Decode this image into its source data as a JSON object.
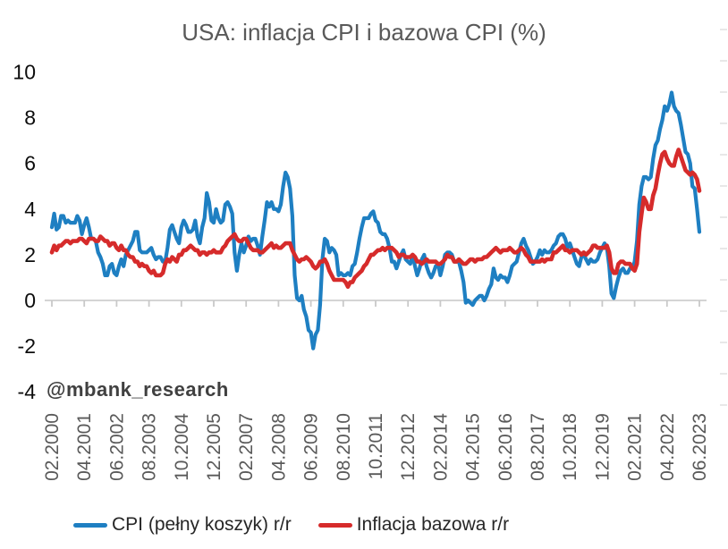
{
  "page": {
    "watermark": "@mbank_research"
  },
  "chart_data": {
    "type": "line",
    "title": "USA: inflacja CPI i bazowa CPI (%)",
    "xlabel": "",
    "ylabel": "",
    "ylim": [
      -4,
      10
    ],
    "y_ticks": [
      10,
      8,
      6,
      4,
      2,
      0,
      -2,
      -4
    ],
    "grid": false,
    "legend_position": "bottom",
    "x_unit": "month",
    "x_range": [
      "02.2000",
      "06.2023"
    ],
    "x_tick_labels": [
      "02.2000",
      "04.2001",
      "06.2002",
      "08.2003",
      "10.2004",
      "12.2005",
      "02.2007",
      "04.2008",
      "06.2009",
      "08.2010",
      "10.2011",
      "12.2012",
      "02.2014",
      "04.2015",
      "06.2016",
      "08.2017",
      "10.2018",
      "12.2019",
      "02.2021",
      "04.2022",
      "06.2023"
    ],
    "axis_color": "#d4d4d4",
    "tick_color": "#c9c9c9",
    "series": [
      {
        "name": "CPI (pełny koszyk) r/r",
        "color": "#1E7FC2",
        "values": [
          3.2,
          3.8,
          3.1,
          3.2,
          3.7,
          3.7,
          3.4,
          3.5,
          3.4,
          3.4,
          3.4,
          3.7,
          3.5,
          2.9,
          3.3,
          3.6,
          3.2,
          2.7,
          2.7,
          2.6,
          2.1,
          1.9,
          1.6,
          1.1,
          1.1,
          1.5,
          1.6,
          1.2,
          1.1,
          1.5,
          1.8,
          1.5,
          2.0,
          2.2,
          2.4,
          2.6,
          3.0,
          3.0,
          2.2,
          2.1,
          2.1,
          2.1,
          2.2,
          2.3,
          2.0,
          1.8,
          1.9,
          1.9,
          1.7,
          1.7,
          2.3,
          3.1,
          3.3,
          3.0,
          2.7,
          2.5,
          3.2,
          3.5,
          3.3,
          3.0,
          3.0,
          3.1,
          3.5,
          2.8,
          2.5,
          3.2,
          3.6,
          4.7,
          4.3,
          3.5,
          3.4,
          4.0,
          3.6,
          3.4,
          3.5,
          4.2,
          4.3,
          4.1,
          3.8,
          2.1,
          1.3,
          2.0,
          2.5,
          2.1,
          2.4,
          2.8,
          2.6,
          2.7,
          2.7,
          2.4,
          2.0,
          2.8,
          3.5,
          4.3,
          4.1,
          4.3,
          4.0,
          4.0,
          3.9,
          4.2,
          5.0,
          5.6,
          5.4,
          4.9,
          3.7,
          1.1,
          0.1,
          0.0,
          0.2,
          -0.4,
          -0.7,
          -1.3,
          -1.4,
          -2.1,
          -1.5,
          -1.3,
          -0.2,
          1.8,
          2.7,
          2.6,
          2.1,
          2.3,
          2.2,
          2.0,
          1.1,
          1.2,
          1.1,
          1.1,
          1.2,
          1.1,
          1.5,
          1.6,
          2.1,
          2.7,
          3.2,
          3.6,
          3.6,
          3.6,
          3.8,
          3.9,
          3.5,
          3.4,
          3.0,
          2.9,
          2.9,
          2.7,
          2.3,
          1.7,
          1.7,
          1.4,
          1.7,
          2.0,
          2.2,
          1.8,
          1.7,
          1.6,
          2.0,
          1.5,
          1.1,
          1.4,
          1.8,
          2.0,
          1.5,
          1.2,
          1.0,
          1.2,
          1.5,
          1.6,
          1.1,
          1.5,
          2.0,
          2.1,
          2.1,
          2.0,
          1.7,
          1.7,
          1.7,
          1.3,
          0.8,
          -0.1,
          0.0,
          -0.1,
          -0.2,
          0.0,
          0.1,
          0.2,
          0.2,
          0.0,
          0.2,
          0.5,
          0.7,
          1.4,
          1.0,
          0.9,
          1.1,
          1.0,
          1.0,
          0.8,
          1.1,
          1.5,
          1.6,
          1.7,
          2.1,
          2.5,
          2.7,
          2.4,
          2.2,
          1.9,
          1.6,
          1.7,
          1.9,
          2.2,
          2.0,
          2.2,
          2.1,
          2.1,
          2.2,
          2.4,
          2.5,
          2.8,
          2.9,
          2.9,
          2.7,
          2.3,
          2.5,
          2.2,
          1.9,
          1.6,
          1.5,
          1.9,
          2.0,
          1.8,
          1.6,
          1.8,
          1.7,
          1.7,
          1.8,
          2.1,
          2.3,
          2.5,
          2.3,
          1.5,
          0.3,
          0.1,
          0.6,
          1.0,
          1.3,
          1.4,
          1.2,
          1.2,
          1.4,
          1.4,
          1.7,
          2.6,
          4.2,
          5.0,
          5.4,
          5.4,
          5.3,
          5.4,
          6.2,
          6.8,
          7.0,
          7.5,
          7.9,
          8.5,
          8.3,
          8.6,
          9.1,
          8.5,
          8.3,
          8.2,
          7.7,
          7.1,
          6.5,
          6.4,
          6.0,
          5.0,
          4.9,
          4.0,
          3.0
        ]
      },
      {
        "name": "Inflacja bazowa r/r",
        "color": "#D62B2B",
        "values": [
          2.1,
          2.4,
          2.2,
          2.4,
          2.4,
          2.5,
          2.6,
          2.6,
          2.5,
          2.6,
          2.6,
          2.6,
          2.7,
          2.7,
          2.6,
          2.5,
          2.7,
          2.7,
          2.7,
          2.6,
          2.6,
          2.8,
          2.7,
          2.6,
          2.6,
          2.4,
          2.5,
          2.5,
          2.3,
          2.2,
          2.4,
          2.2,
          2.2,
          2.0,
          1.9,
          1.9,
          1.7,
          1.7,
          1.5,
          1.6,
          1.5,
          1.5,
          1.3,
          1.2,
          1.3,
          1.1,
          1.1,
          1.1,
          1.2,
          1.6,
          1.8,
          1.7,
          1.9,
          1.8,
          1.7,
          2.0,
          2.0,
          2.2,
          2.2,
          2.3,
          2.4,
          2.3,
          2.2,
          2.2,
          2.0,
          2.1,
          2.1,
          2.0,
          2.1,
          2.1,
          2.2,
          2.1,
          2.1,
          2.1,
          2.3,
          2.4,
          2.6,
          2.7,
          2.8,
          2.9,
          2.7,
          2.6,
          2.6,
          2.7,
          2.7,
          2.5,
          2.3,
          2.2,
          2.2,
          2.2,
          2.1,
          2.1,
          2.2,
          2.3,
          2.4,
          2.5,
          2.3,
          2.4,
          2.3,
          2.3,
          2.4,
          2.5,
          2.5,
          2.5,
          2.2,
          2.0,
          1.8,
          1.7,
          1.8,
          1.8,
          1.9,
          1.8,
          1.7,
          1.5,
          1.4,
          1.5,
          1.7,
          1.7,
          1.8,
          1.6,
          1.3,
          1.1,
          0.9,
          0.9,
          0.9,
          0.9,
          0.9,
          0.8,
          0.6,
          0.8,
          0.8,
          1.0,
          1.1,
          1.2,
          1.3,
          1.5,
          1.6,
          1.8,
          2.0,
          2.0,
          2.1,
          2.2,
          2.2,
          2.3,
          2.2,
          2.3,
          2.3,
          2.3,
          2.2,
          2.1,
          1.9,
          2.0,
          2.0,
          1.9,
          1.9,
          1.9,
          2.0,
          1.9,
          1.7,
          1.7,
          1.6,
          1.7,
          1.8,
          1.7,
          1.7,
          1.7,
          1.7,
          1.6,
          1.6,
          1.7,
          1.8,
          2.0,
          1.9,
          1.9,
          1.7,
          1.7,
          1.8,
          1.7,
          1.6,
          1.6,
          1.7,
          1.8,
          1.8,
          1.7,
          1.8,
          1.8,
          1.8,
          1.9,
          1.9,
          2.0,
          2.1,
          2.2,
          2.3,
          2.2,
          2.1,
          2.2,
          2.2,
          2.2,
          2.3,
          2.2,
          2.1,
          2.1,
          2.2,
          2.3,
          2.2,
          2.0,
          1.9,
          1.7,
          1.7,
          1.7,
          1.7,
          1.7,
          1.8,
          1.7,
          1.8,
          1.8,
          1.8,
          2.1,
          2.1,
          2.2,
          2.3,
          2.4,
          2.2,
          2.2,
          2.1,
          2.2,
          2.2,
          2.2,
          2.1,
          2.0,
          2.1,
          2.0,
          2.1,
          2.2,
          2.4,
          2.4,
          2.3,
          2.3,
          2.3,
          2.3,
          2.4,
          2.1,
          1.4,
          1.2,
          1.2,
          1.6,
          1.7,
          1.7,
          1.6,
          1.6,
          1.6,
          1.4,
          1.3,
          1.6,
          3.0,
          3.8,
          4.5,
          4.3,
          4.0,
          4.0,
          4.6,
          4.9,
          5.5,
          6.0,
          6.4,
          6.5,
          6.2,
          6.0,
          5.9,
          5.9,
          6.3,
          6.6,
          6.3,
          6.0,
          5.7,
          5.6,
          5.5,
          5.6,
          5.5,
          5.3,
          4.8
        ]
      }
    ]
  }
}
